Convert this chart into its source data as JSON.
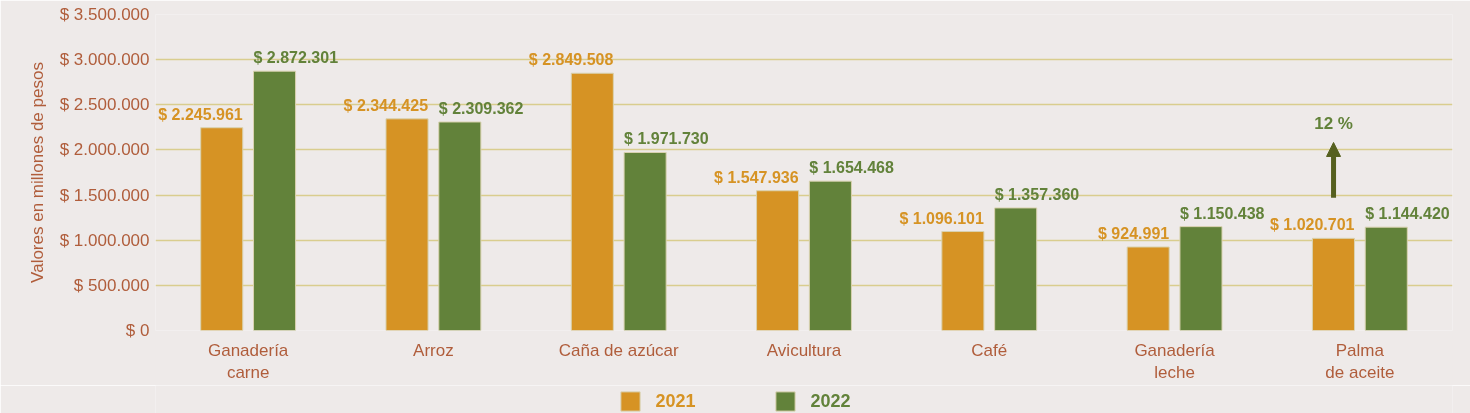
{
  "chart_data": {
    "type": "bar",
    "ylabel": "Valores en millones de pesos",
    "categories": [
      "Ganadería\ncarne",
      "Arroz",
      "Caña de azúcar",
      "Avicultura",
      "Café",
      "Ganadería\nleche",
      "Palma\nde aceite"
    ],
    "series": [
      {
        "name": "2021",
        "color": "#d69324",
        "values": [
          2245961,
          2344425,
          2849508,
          1547936,
          1096101,
          924991,
          1020701
        ],
        "value_labels": [
          "$ 2.245.961",
          "$ 2.344.425",
          "$ 2.849.508",
          "$ 1.547.936",
          "$ 1.096.101",
          "$ 924.991",
          "$ 1.020.701"
        ]
      },
      {
        "name": "2022",
        "color": "#62823a",
        "values": [
          2872301,
          2309362,
          1971730,
          1654468,
          1357360,
          1150438,
          1144420
        ],
        "value_labels": [
          "$ 2.872.301",
          "$ 2.309.362",
          "$ 1.971.730",
          "$ 1.654.468",
          "$ 1.357.360",
          "$ 1.150.438",
          "$ 1.144.420"
        ]
      }
    ],
    "ylim": [
      0,
      3500000
    ],
    "yticks": [
      {
        "value": 0,
        "label": "$ 0"
      },
      {
        "value": 500000,
        "label": "$ 500.000"
      },
      {
        "value": 1000000,
        "label": "$ 1.000.000"
      },
      {
        "value": 1500000,
        "label": "$ 1.500.000"
      },
      {
        "value": 2000000,
        "label": "$ 2.000.000"
      },
      {
        "value": 2500000,
        "label": "$ 2.500.000"
      },
      {
        "value": 3000000,
        "label": "$ 3.000.000"
      },
      {
        "value": 3500000,
        "label": "$ 3.500.000"
      }
    ],
    "annotations": [
      "12 %"
    ],
    "grid": "y",
    "legend": "bottom"
  }
}
